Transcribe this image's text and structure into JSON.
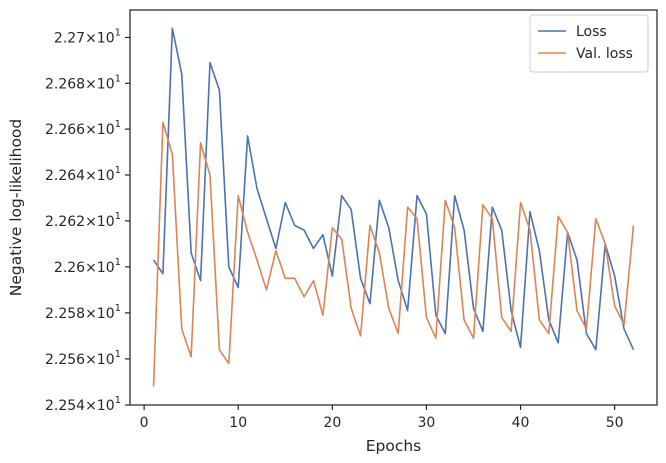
{
  "chart_data": {
    "type": "line",
    "xlabel": "Epochs",
    "ylabel": "Negative log-likelihood",
    "xlim": [
      -1.5,
      54.5
    ],
    "ylim": [
      22.54,
      22.712
    ],
    "yscale": "log",
    "grid": false,
    "legend_position": "top-right",
    "x_ticks": [
      0,
      10,
      20,
      30,
      40,
      50
    ],
    "x_tick_labels": [
      "0",
      "10",
      "20",
      "30",
      "40",
      "50"
    ],
    "y_ticks": [
      22.54,
      22.56,
      22.58,
      22.6,
      22.62,
      22.64,
      22.66,
      22.68,
      22.7
    ],
    "y_tick_labels": [
      {
        "mantissa": "2.254",
        "exp": "1"
      },
      {
        "mantissa": "2.256",
        "exp": "1"
      },
      {
        "mantissa": "2.258",
        "exp": "1"
      },
      {
        "mantissa": "2.26",
        "exp": "1"
      },
      {
        "mantissa": "2.262",
        "exp": "1"
      },
      {
        "mantissa": "2.264",
        "exp": "1"
      },
      {
        "mantissa": "2.266",
        "exp": "1"
      },
      {
        "mantissa": "2.268",
        "exp": "1"
      },
      {
        "mantissa": "2.27",
        "exp": "1"
      }
    ],
    "x": [
      1,
      2,
      3,
      4,
      5,
      6,
      7,
      8,
      9,
      10,
      11,
      12,
      13,
      14,
      15,
      16,
      17,
      18,
      19,
      20,
      21,
      22,
      23,
      24,
      25,
      26,
      27,
      28,
      29,
      30,
      31,
      32,
      33,
      34,
      35,
      36,
      37,
      38,
      39,
      40,
      41,
      42,
      43,
      44,
      45,
      46,
      47,
      48,
      49,
      50,
      51,
      52
    ],
    "series": [
      {
        "name": "Loss",
        "color": "#4c72b0",
        "values": [
          22.603,
          22.597,
          22.704,
          22.684,
          22.606,
          22.594,
          22.689,
          22.677,
          22.6,
          22.591,
          22.657,
          22.634,
          22.621,
          22.608,
          22.628,
          22.618,
          22.616,
          22.608,
          22.614,
          22.596,
          22.631,
          22.625,
          22.595,
          22.584,
          22.629,
          22.617,
          22.594,
          22.581,
          22.631,
          22.623,
          22.579,
          22.571,
          22.631,
          22.616,
          22.582,
          22.572,
          22.626,
          22.616,
          22.581,
          22.565,
          22.624,
          22.607,
          22.577,
          22.567,
          22.615,
          22.603,
          22.571,
          22.564,
          22.61,
          22.596,
          22.573,
          22.564
        ]
      },
      {
        "name": "Val. loss",
        "color": "#dd8452",
        "values": [
          22.548,
          22.663,
          22.649,
          22.573,
          22.561,
          22.654,
          22.64,
          22.564,
          22.558,
          22.631,
          22.615,
          22.603,
          22.59,
          22.607,
          22.595,
          22.595,
          22.587,
          22.594,
          22.579,
          22.617,
          22.612,
          22.582,
          22.57,
          22.618,
          22.606,
          22.582,
          22.571,
          22.626,
          22.621,
          22.578,
          22.569,
          22.629,
          22.617,
          22.577,
          22.569,
          22.627,
          22.621,
          22.578,
          22.572,
          22.628,
          22.616,
          22.577,
          22.571,
          22.622,
          22.615,
          22.581,
          22.573,
          22.621,
          22.61,
          22.583,
          22.575,
          22.618
        ]
      }
    ]
  }
}
